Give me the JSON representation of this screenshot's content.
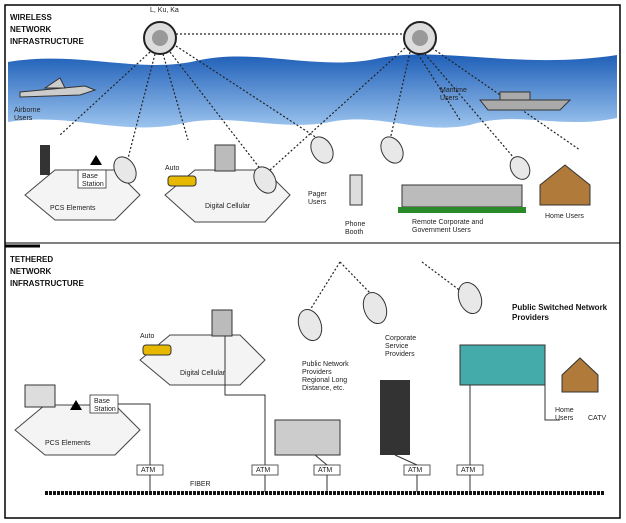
{
  "wireless": {
    "title": [
      "WIRELESS",
      "NETWORK",
      "INFRASTRUCTURE"
    ],
    "bands": "L, Ku, Ka",
    "airborne": [
      "Airborne",
      "Users"
    ],
    "maritime": [
      "Maritime",
      "Users"
    ],
    "pcs": "PCS Elements",
    "base_station": [
      "Base",
      "Station"
    ],
    "auto": "Auto",
    "cellular": "Digital Cellular",
    "pager": [
      "Pager",
      "Users"
    ],
    "phone_booth": [
      "Phone",
      "Booth"
    ],
    "remote": [
      "Remote Corporate and",
      "Government Users"
    ],
    "home": "Home Users"
  },
  "tethered": {
    "title": [
      "TETHERED",
      "NETWORK",
      "INFRASTRUCTURE"
    ],
    "auto": "Auto",
    "cellular": "Digital Cellular",
    "pcs": "PCS Elements",
    "base_station": [
      "Base",
      "Station"
    ],
    "public": [
      "Public Network",
      "Providers",
      "Regional Long",
      "Distance, etc."
    ],
    "corporate": [
      "Corporate",
      "Service",
      "Providers"
    ],
    "switched": [
      "Public Switched Network",
      "Providers"
    ],
    "home": [
      "Home",
      "Users"
    ],
    "catv": "CATV"
  },
  "backbone": {
    "switches": [
      "ATM",
      "ATM",
      "ATM",
      "ATM",
      "ATM"
    ],
    "label": "FIBER"
  }
}
